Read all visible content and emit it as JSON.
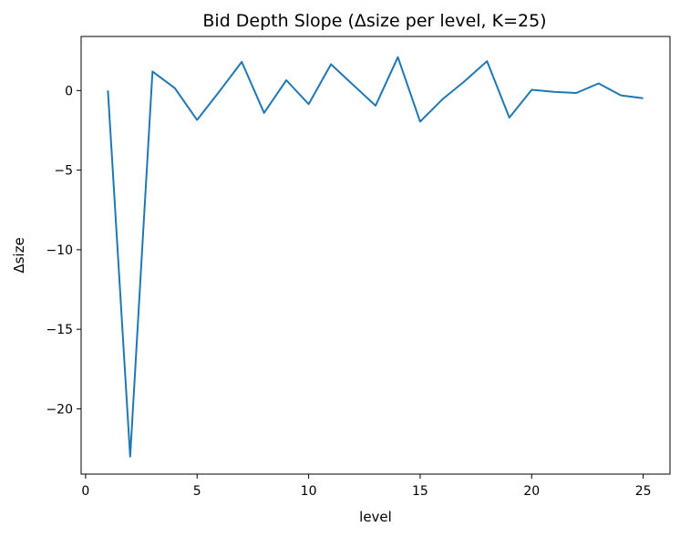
{
  "chart_data": {
    "type": "line",
    "title": "Bid Depth Slope (Δsize per level, K=25)",
    "xlabel": "level",
    "ylabel": "Δsize",
    "xlim": [
      -0.2,
      26.2
    ],
    "ylim": [
      -24.1,
      3.4
    ],
    "xticks": [
      0,
      5,
      10,
      15,
      20,
      25
    ],
    "yticks": [
      0,
      -5,
      -10,
      -15,
      -20
    ],
    "grid": false,
    "line_color": "#1f77b4",
    "series": [
      {
        "x": [
          1,
          2,
          3,
          4,
          5,
          6,
          7,
          8,
          9,
          10,
          11,
          12,
          13,
          14,
          15,
          16,
          17,
          18,
          19,
          20,
          21,
          22,
          23,
          24,
          25
        ],
        "values": [
          0.0,
          -23.0,
          1.2,
          0.15,
          -1.85,
          -0.05,
          1.8,
          -1.4,
          0.65,
          -0.85,
          1.65,
          0.35,
          -0.95,
          2.1,
          -1.95,
          -0.55,
          0.6,
          1.85,
          -1.7,
          0.05,
          -0.08,
          -0.15,
          0.45,
          -0.3,
          -0.48
        ]
      }
    ]
  }
}
